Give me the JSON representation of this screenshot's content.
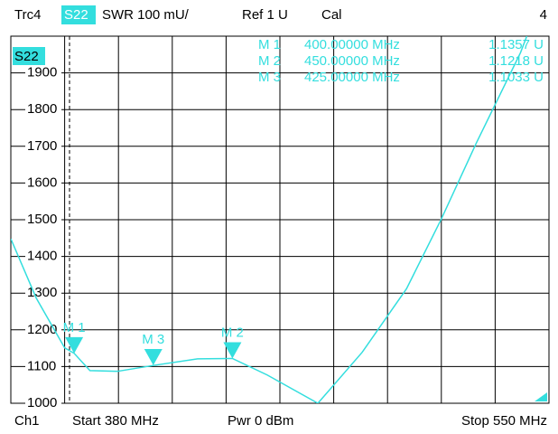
{
  "chart_data": {
    "type": "line",
    "header": {
      "trace": "Trc4",
      "param": "S22",
      "format": "SWR  100 mU/",
      "ref": "Ref 1 U",
      "cal": "Cal",
      "number": "4"
    },
    "footer": {
      "channel": "Ch1",
      "start": "Start  380 MHz",
      "power": "Pwr  0 dBm",
      "stop": "Stop  550 MHz"
    },
    "legend": "S22",
    "xlim": [
      380,
      550
    ],
    "ylim": [
      1000,
      2000
    ],
    "yticks": [
      1000,
      1100,
      1200,
      1300,
      1400,
      1500,
      1600,
      1700,
      1800,
      1900
    ],
    "grid": true,
    "x": [
      380,
      388,
      397,
      400,
      405,
      413.7,
      425,
      439,
      450,
      461,
      477,
      491,
      505,
      516,
      527,
      541,
      543
    ],
    "series": [
      {
        "color": "#33dede",
        "values": [
          1448,
          1287,
          1151,
          1136,
          1089,
          1087,
          1103,
          1121,
          1122,
          1077,
          1000,
          1139,
          1312,
          1502,
          1708,
          1955,
          2000
        ]
      }
    ],
    "markers": [
      {
        "label": "M 1",
        "x": 400,
        "y": 1135.7,
        "freq_label": "400.00000 MHz",
        "value_label": "1.1357 U"
      },
      {
        "label": "M 2",
        "x": 450,
        "y": 1121.8,
        "freq_label": "450.00000 MHz",
        "value_label": "1.1218 U"
      },
      {
        "label": "M 3",
        "x": 425,
        "y": 1103.3,
        "freq_label": "425.00000 MHz",
        "value_label": "1.1033 U"
      }
    ]
  }
}
